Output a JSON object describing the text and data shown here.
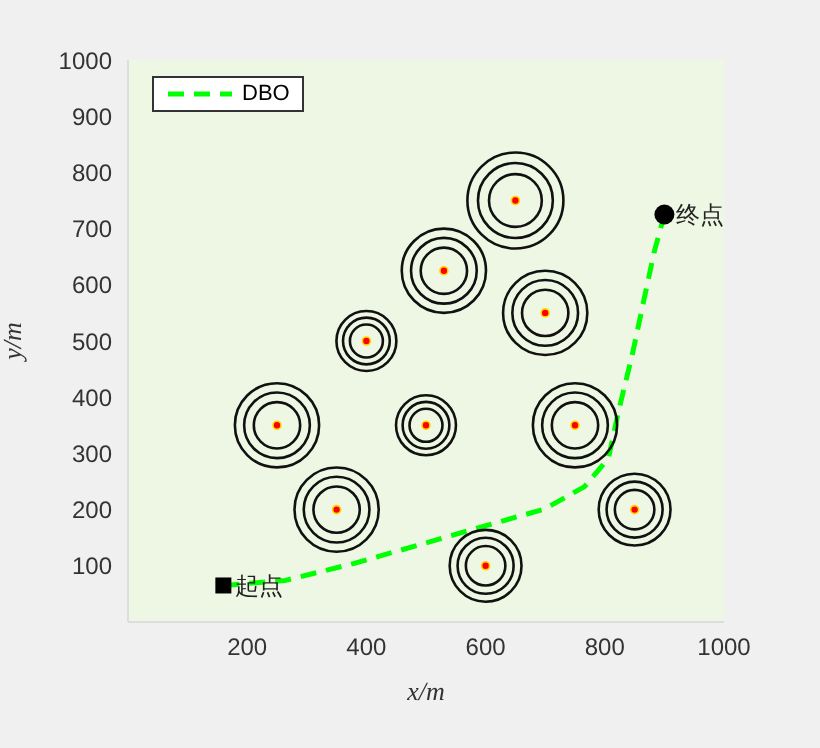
{
  "chart_data": {
    "type": "line",
    "xlabel": "x/m",
    "ylabel": "y/m",
    "xlim": [
      0,
      1000
    ],
    "ylim": [
      0,
      1000
    ],
    "xticks": [
      200,
      400,
      600,
      800,
      1000
    ],
    "yticks": [
      100,
      200,
      300,
      400,
      500,
      600,
      700,
      800,
      900,
      1000
    ],
    "grid": false,
    "legend": "top left",
    "series": [
      {
        "name": "DBO",
        "color": "#00ff00",
        "line_style": "dashed",
        "marker": "none",
        "x": [
          160,
          264,
          378,
          488,
          599,
          699,
          766,
          806,
          823,
          846,
          866,
          883,
          900
        ],
        "values": [
          65,
          74,
          104,
          137,
          171,
          201,
          241,
          291,
          375,
          475,
          575,
          659,
          725
        ]
      },
      {
        "type": "bubble",
        "color": "#ff0000",
        "x": [
          650,
          530,
          700,
          400,
          500,
          750,
          250,
          350,
          850,
          600
        ],
        "values": [
          750,
          625,
          550,
          500,
          350,
          350,
          350,
          200,
          200,
          100
        ],
        "sizes": [
          1,
          0.77,
          0.77,
          0.39,
          0.39,
          0.77,
          0.77,
          0.77,
          0.56,
          0.56
        ]
      },
      {
        "type": "scatter",
        "color": "#000000",
        "marker": "square",
        "x": [
          160
        ],
        "values": [
          65
        ]
      },
      {
        "type": "scatter",
        "color": "#000000",
        "marker": "circle",
        "x": [
          900
        ],
        "values": [
          725
        ]
      }
    ],
    "annotations": [
      {
        "text": "起点",
        "x": 160,
        "y": 65
      },
      {
        "text": "终点",
        "x": 900,
        "y": 725
      }
    ]
  }
}
